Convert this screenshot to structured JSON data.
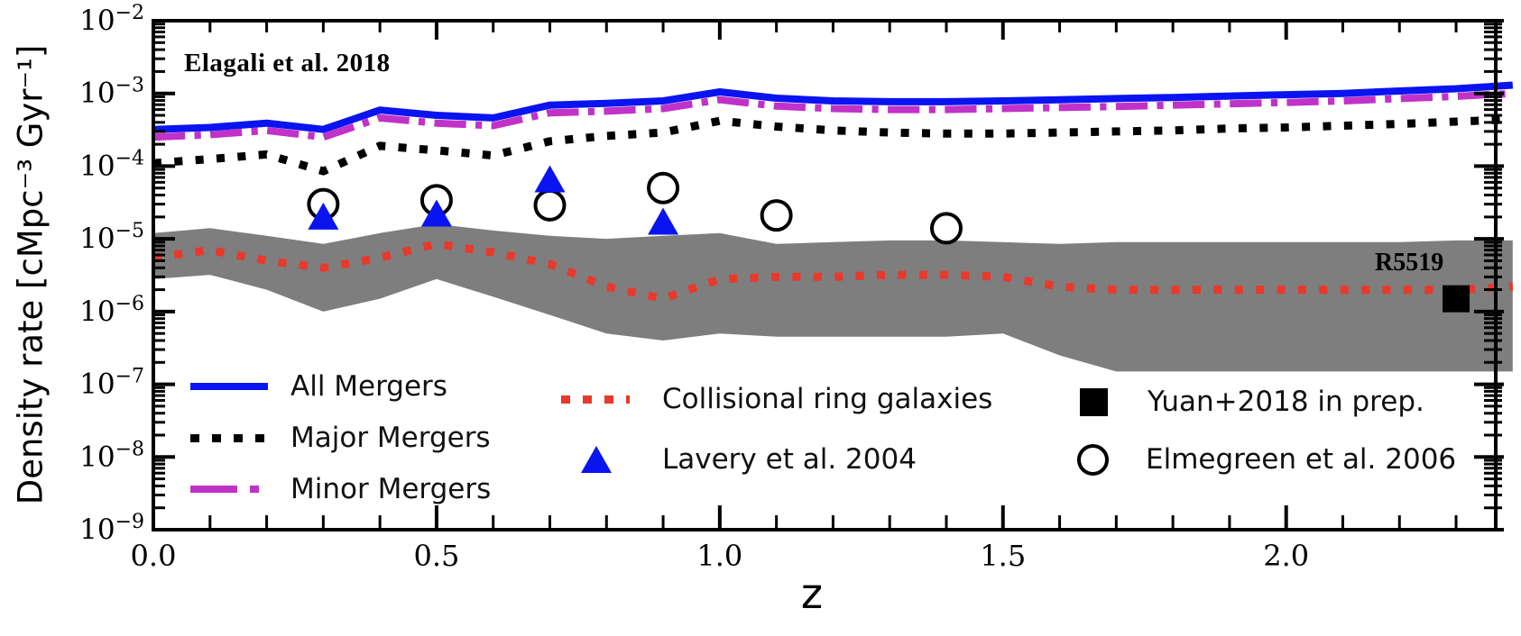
{
  "annotations": {
    "source_label": "Elagali et al. 2018",
    "point_label": "R5519"
  },
  "legend": {
    "items": [
      {
        "id": "all-mergers",
        "label": "All Mergers",
        "marker": "solid-line",
        "color": "#0a14f0"
      },
      {
        "id": "major-mergers",
        "label": "Major Mergers",
        "marker": "dotted-line",
        "color": "#000000"
      },
      {
        "id": "minor-mergers",
        "label": "Minor Mergers",
        "marker": "dashdot-line",
        "color": "#c032c8"
      },
      {
        "id": "ring-galaxies",
        "label": "Collisional ring galaxies",
        "marker": "dotted-line",
        "color": "#e8392b"
      },
      {
        "id": "lavery-2004",
        "label": "Lavery et al. 2004",
        "marker": "filled-triangle",
        "color": "#0a14f0"
      },
      {
        "id": "yuan-2018",
        "label": "Yuan+2018 in prep.",
        "marker": "filled-square",
        "color": "#000000"
      },
      {
        "id": "elmegreen-2006",
        "label": "Elmegreen et al. 2006",
        "marker": "open-circle",
        "color": "#000000"
      }
    ]
  },
  "chart_data": {
    "type": "line",
    "title": "Elagali et al. 2018",
    "xlabel": "z",
    "ylabel": "Density rate [cMpc⁻³ Gyr⁻¹]",
    "xlim": [
      0,
      2.37
    ],
    "ylim": [
      1e-09,
      0.01
    ],
    "y_scale": "log",
    "grid": false,
    "legend_position": "lower-left-inside",
    "xticks": [
      0,
      0.5,
      1.0,
      1.5,
      2.0
    ],
    "xtick_labels": [
      "0.0",
      "0.5",
      "1.0",
      "1.5",
      "2.0"
    ],
    "xminor_step": 0.1,
    "ytick_exponents": [
      -2,
      -3,
      -4,
      -5,
      -6,
      -7,
      -8,
      -9
    ],
    "x": [
      0,
      0.1,
      0.2,
      0.3,
      0.4,
      0.5,
      0.6,
      0.7,
      0.8,
      0.9,
      1.0,
      1.1,
      1.2,
      1.3,
      1.4,
      1.5,
      1.6,
      1.7,
      1.8,
      1.9,
      2.0,
      2.1,
      2.2,
      2.3,
      2.4
    ],
    "series": [
      {
        "name": "All Mergers",
        "style": "solid",
        "color": "#0a14f0",
        "width": 8,
        "values": [
          0.00032,
          0.00034,
          0.00039,
          0.00032,
          0.00059,
          0.0005,
          0.00046,
          0.00069,
          0.00073,
          0.00079,
          0.00105,
          0.00086,
          0.00079,
          0.00077,
          0.00077,
          0.00079,
          0.00082,
          0.00085,
          0.00088,
          0.00092,
          0.00096,
          0.001,
          0.00108,
          0.00116,
          0.0013
        ]
      },
      {
        "name": "Minor Mergers",
        "style": "dashdot",
        "color": "#c032c8",
        "width": 8,
        "values": [
          0.00025,
          0.00027,
          0.00031,
          0.00025,
          0.00046,
          0.00039,
          0.00036,
          0.00054,
          0.00057,
          0.00062,
          0.00082,
          0.00067,
          0.00062,
          0.0006,
          0.0006,
          0.00062,
          0.00064,
          0.00066,
          0.00069,
          0.00072,
          0.00075,
          0.00079,
          0.00085,
          0.00091,
          0.001
        ]
      },
      {
        "name": "Major Mergers",
        "style": "dotted",
        "color": "#000000",
        "width": 9,
        "values": [
          0.00011,
          0.000125,
          0.000145,
          8.5e-05,
          0.00019,
          0.000165,
          0.00014,
          0.00022,
          0.00026,
          0.00029,
          0.00042,
          0.00035,
          0.00031,
          0.00029,
          0.00028,
          0.00028,
          0.00029,
          0.0003,
          0.00031,
          0.00033,
          0.00034,
          0.00036,
          0.00038,
          0.00041,
          0.00044
        ]
      },
      {
        "name": "Collisional ring galaxies",
        "style": "dotted",
        "color": "#e8392b",
        "width": 9,
        "values": [
          5.5e-06,
          7e-06,
          5e-06,
          4e-06,
          5.5e-06,
          8.5e-06,
          6.5e-06,
          4.5e-06,
          2.2e-06,
          1.5e-06,
          2.8e-06,
          3e-06,
          3e-06,
          3.2e-06,
          3.2e-06,
          3e-06,
          2.2e-06,
          2e-06,
          2e-06,
          2e-06,
          2e-06,
          2e-06,
          2e-06,
          2e-06,
          2.2e-06
        ]
      }
    ],
    "band": {
      "name": "Collisional ring galaxies uncertainty band",
      "color": "#7e7e7e",
      "upper": [
        1.2e-05,
        1.4e-05,
        1.1e-05,
        8.5e-06,
        1.2e-05,
        1.6e-05,
        1.3e-05,
        1.1e-05,
        1e-05,
        1.1e-05,
        1.2e-05,
        8.5e-06,
        9e-06,
        9.5e-06,
        9.5e-06,
        9e-06,
        8.5e-06,
        9e-06,
        9e-06,
        9e-06,
        9e-06,
        9e-06,
        9e-06,
        9.5e-06,
        9.5e-06
      ],
      "lower": [
        2.8e-06,
        3.2e-06,
        2e-06,
        1e-06,
        1.5e-06,
        2.8e-06,
        1.6e-06,
        9e-07,
        5e-07,
        4e-07,
        5e-07,
        4.5e-07,
        4.5e-07,
        4.5e-07,
        4.5e-07,
        5e-07,
        2.5e-07,
        1.5e-07,
        1.5e-07,
        1.5e-07,
        1.5e-07,
        1.5e-07,
        1.5e-07,
        1.5e-07,
        1.5e-07
      ]
    },
    "scatter": [
      {
        "name": "Elmegreen et al. 2006",
        "marker": "open-circle",
        "color": "#000000",
        "points": [
          [
            0.3,
            3e-05
          ],
          [
            0.5,
            3.4e-05
          ],
          [
            0.7,
            2.9e-05
          ],
          [
            0.9,
            5e-05
          ],
          [
            1.1,
            2.1e-05
          ],
          [
            1.4,
            1.4e-05
          ]
        ]
      },
      {
        "name": "Lavery et al. 2004",
        "marker": "filled-triangle",
        "color": "#0a14f0",
        "points": [
          [
            0.3,
            2e-05
          ],
          [
            0.5,
            2.2e-05
          ],
          [
            0.7,
            6.5e-05
          ],
          [
            0.9,
            1.7e-05
          ]
        ]
      },
      {
        "name": "Yuan+2018 in prep.",
        "marker": "filled-square",
        "color": "#000000",
        "points": [
          [
            2.3,
            1.5e-06
          ]
        ],
        "point_label": "R5519"
      }
    ]
  }
}
